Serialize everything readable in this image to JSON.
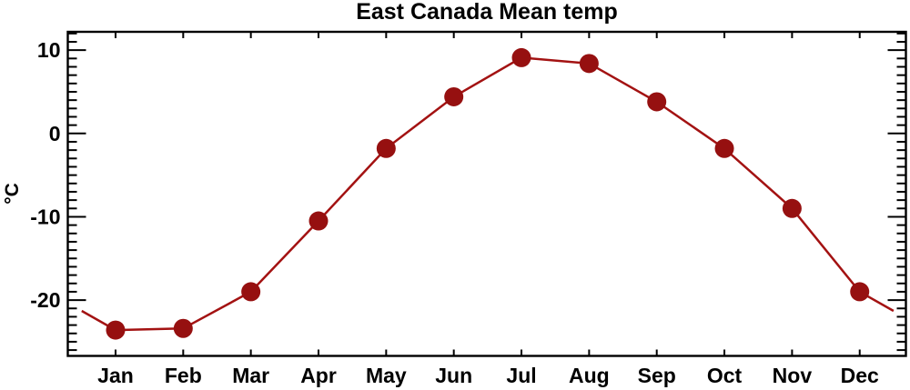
{
  "chart_data": {
    "type": "line",
    "title": "East Canada Mean temp",
    "ylabel": "°C",
    "xlabel": "",
    "categories": [
      "Jan",
      "Feb",
      "Mar",
      "Apr",
      "May",
      "Jun",
      "Jul",
      "Aug",
      "Sep",
      "Oct",
      "Nov",
      "Dec"
    ],
    "values": [
      -23.6,
      -23.4,
      -19.0,
      -10.5,
      -1.8,
      4.4,
      9.1,
      8.4,
      3.8,
      -1.8,
      -9.0,
      -19.0
    ],
    "wraparound": true,
    "x_clip": [
      0.5,
      12.5
    ],
    "xlim": [
      0.294,
      12.683
    ],
    "ylim": [
      -26.7,
      12.2
    ],
    "y_major_ticks": [
      10,
      0,
      -10,
      -20
    ],
    "y_major_labels": [
      "10",
      "0",
      "-10",
      "-20"
    ],
    "y_minor_step": 1,
    "grid": false,
    "legend_position": "none",
    "line_color": "#a31212",
    "marker_color": "#961010",
    "axis_color": "#000000",
    "background_color": "#ffffff",
    "marker_radius": 10.5,
    "line_width": 2.5
  }
}
